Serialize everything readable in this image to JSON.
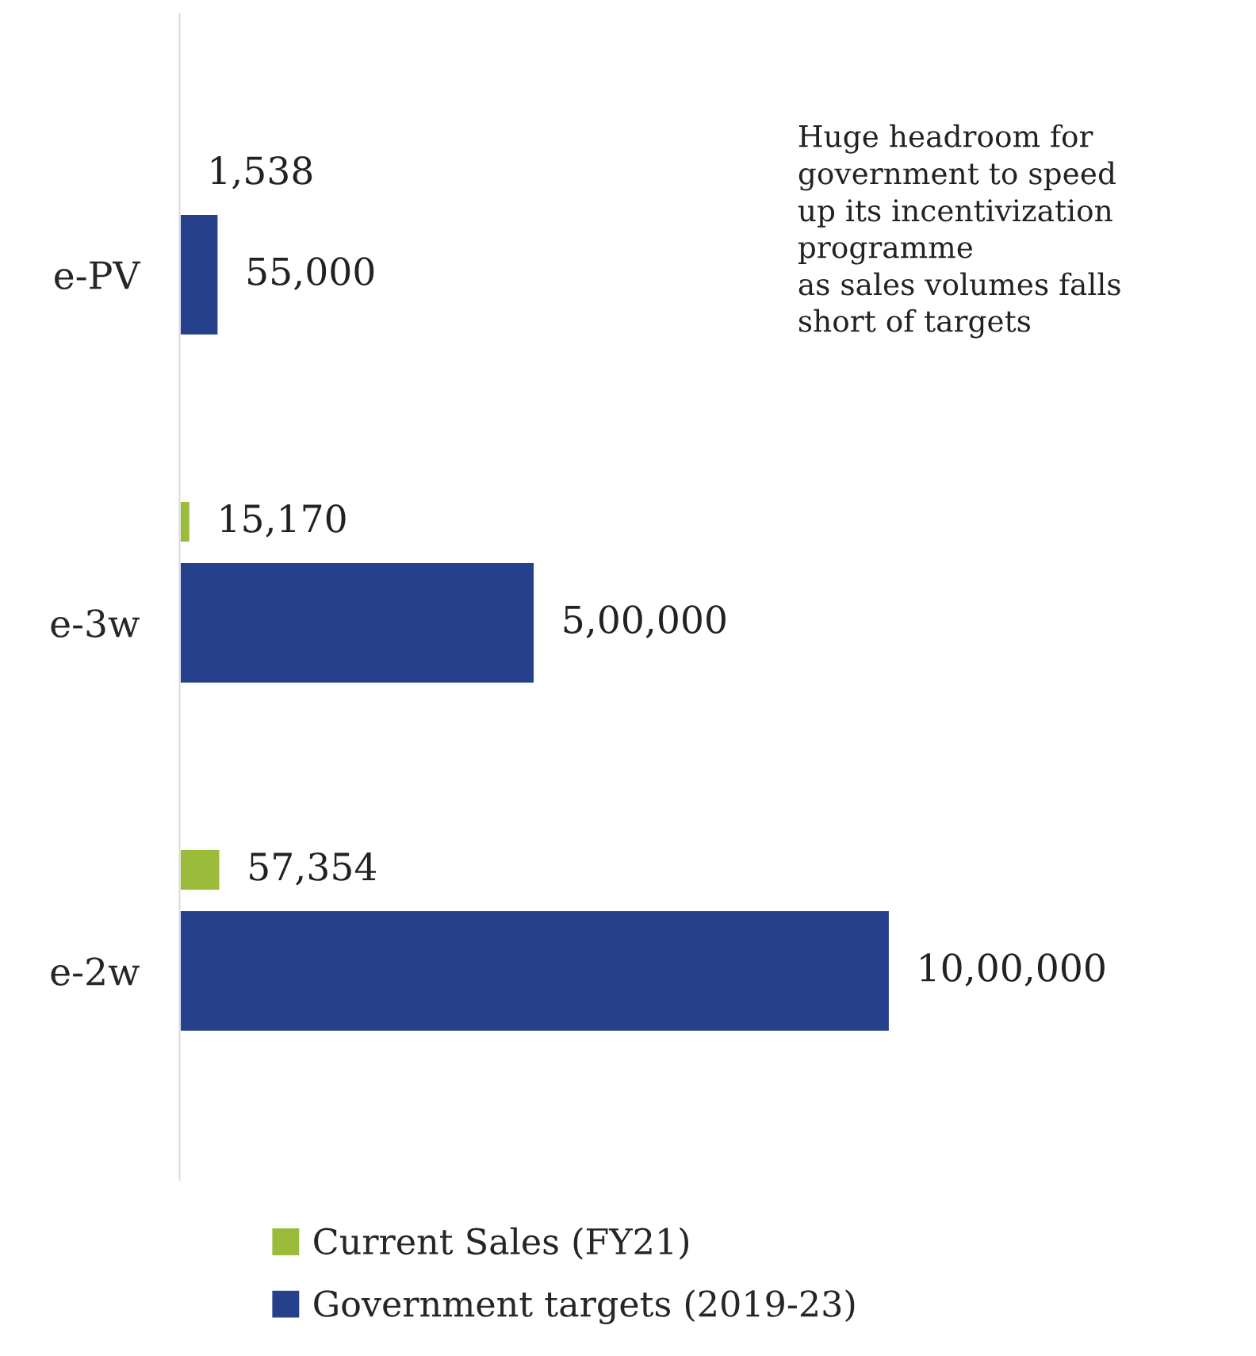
{
  "chart_data": {
    "type": "bar",
    "orientation": "horizontal",
    "categories": [
      "e-PV",
      "e-3w",
      "e-2w"
    ],
    "series": [
      {
        "name": "Current Sales (FY21)",
        "color": "#9bbb3b",
        "values": [
          1538,
          15170,
          57354
        ],
        "value_labels": [
          "1,538",
          "15,170",
          "57,354"
        ]
      },
      {
        "name": "Government targets (2019-23)",
        "color": "#27408b",
        "values": [
          55000,
          500000,
          1000000
        ],
        "value_labels": [
          "55,000",
          "5,00,000",
          "10,00,000"
        ]
      }
    ],
    "annotations": [
      "Huge headroom for\ngovernment to speed\nup its incentivization\nprogramme\nas sales volumes falls\nshort of targets"
    ],
    "legend": "bottom",
    "grid": false,
    "tick_labels": "y"
  }
}
